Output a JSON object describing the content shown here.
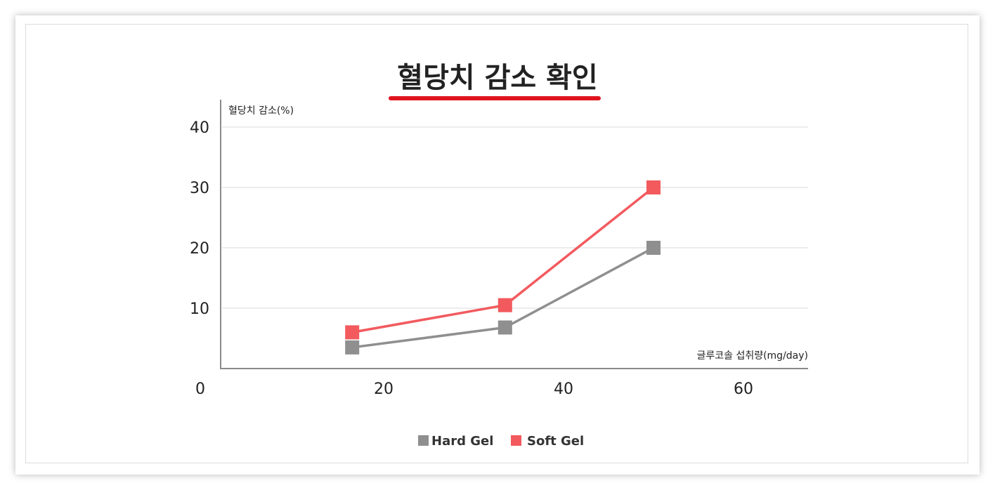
{
  "chart_data": {
    "type": "line",
    "title": "혈당치 감소 확인",
    "ylabel": "혈당치 감소(%)",
    "xlabel": "글루코솔 섭취량(mg/day)",
    "x_ticks": [
      0,
      20,
      40,
      60
    ],
    "y_ticks": [
      10,
      20,
      30,
      40
    ],
    "xlim": [
      0,
      69
    ],
    "ylim": [
      0,
      47
    ],
    "grid": true,
    "legend_position": "bottom-center",
    "series": [
      {
        "name": "Hard Gel",
        "color": "#8f8f8f",
        "x": [
          16.5,
          33.5,
          50
        ],
        "values": [
          3.5,
          6.8,
          20
        ]
      },
      {
        "name": "Soft Gel",
        "color": "#f25a5e",
        "x": [
          16.5,
          33.5,
          50
        ],
        "values": [
          6,
          10.5,
          30
        ]
      }
    ],
    "title_underline_color": "#e0141e"
  }
}
